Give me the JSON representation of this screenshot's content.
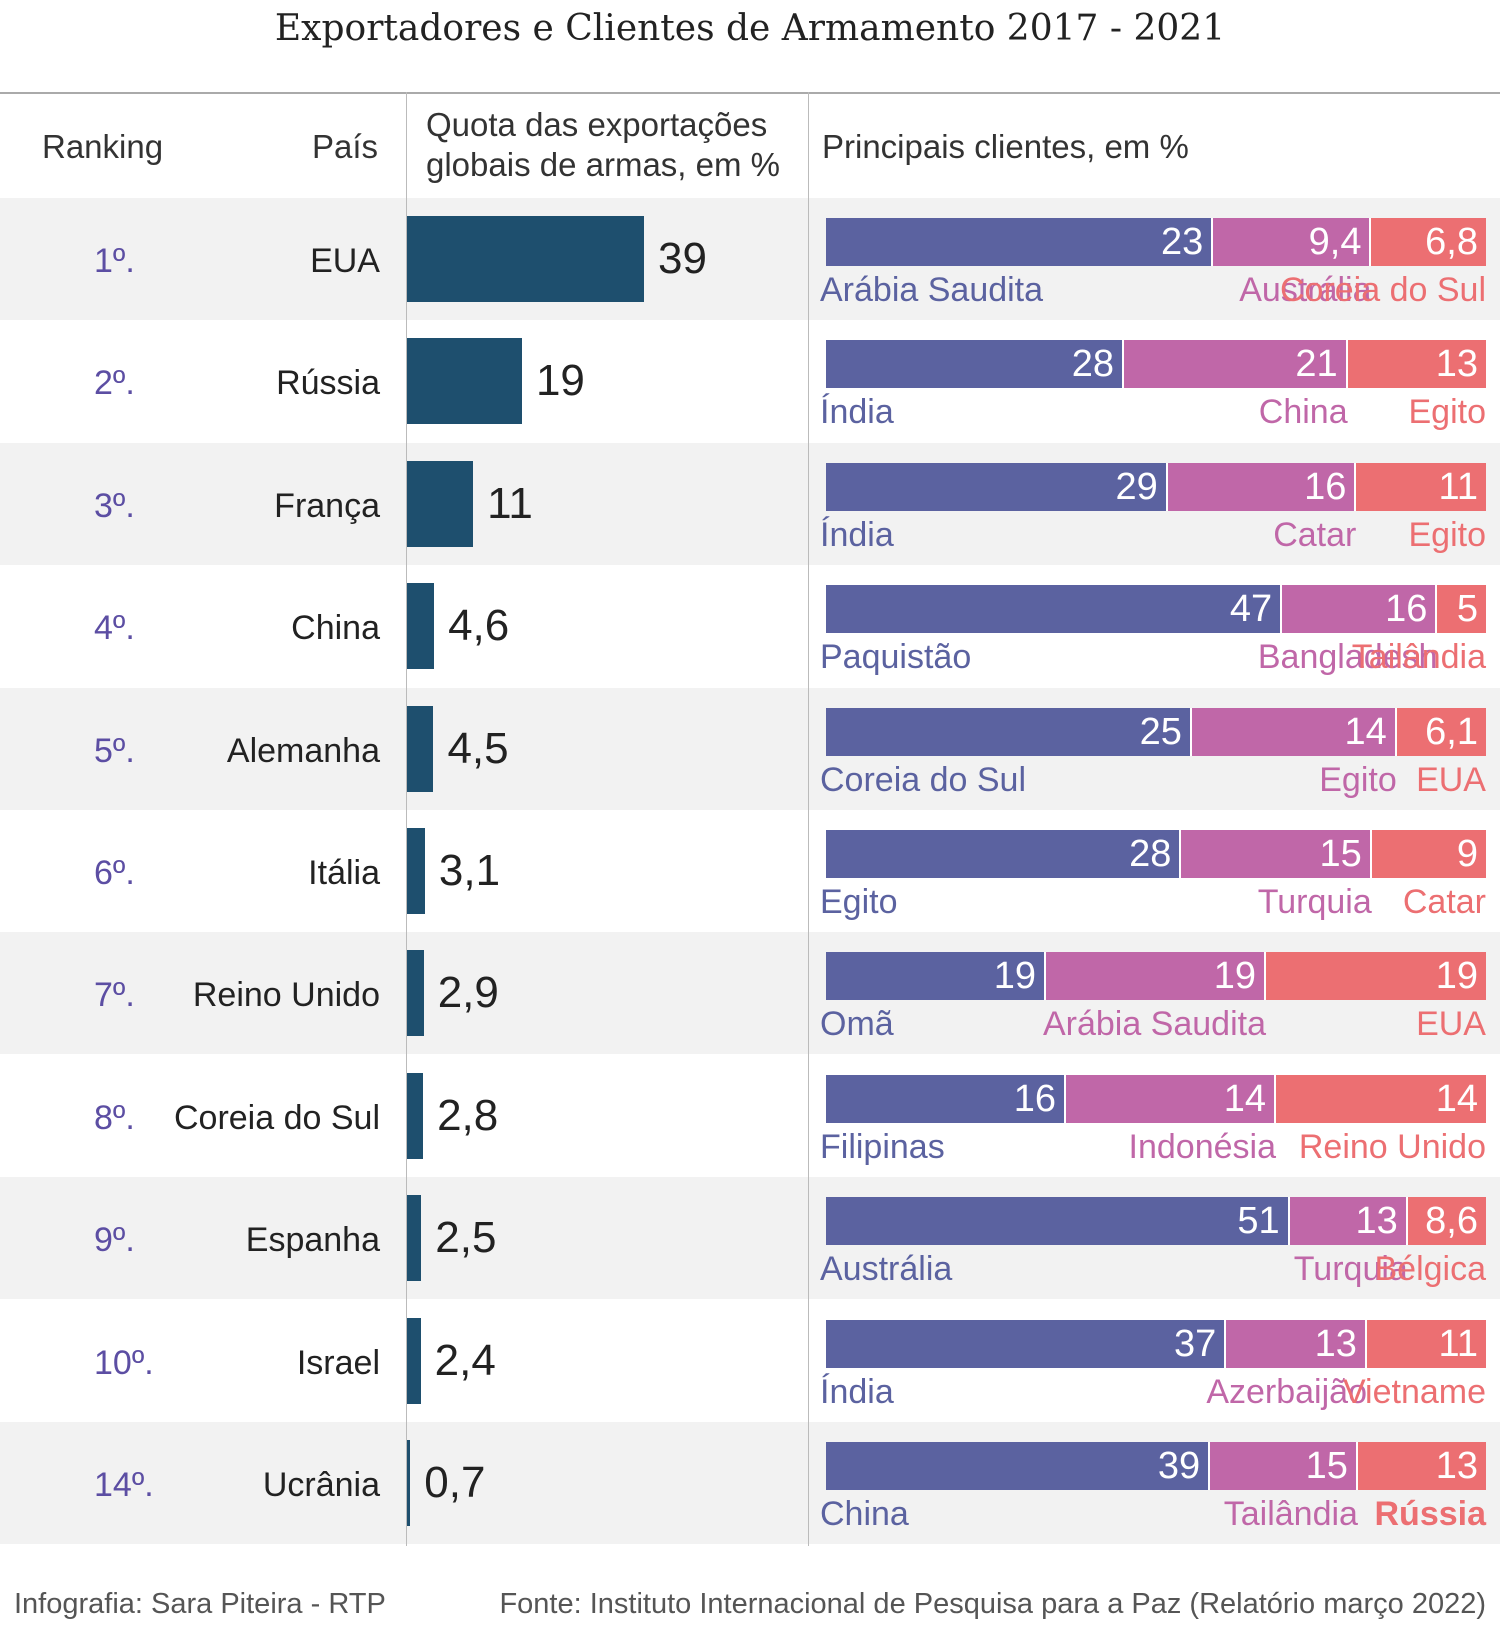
{
  "colors": {
    "share_bar": "#1e4f6e",
    "client1": "#5b62a0",
    "client2": "#c067a8",
    "client3": "#ec6f72",
    "rank": "#5c4ea3",
    "row_alt": "#f2f2f2"
  },
  "chart_data": {
    "type": "bar",
    "title": "Exportadores e Clientes de Armamento  2017 - 2021",
    "columns": {
      "ranking": "Ranking",
      "country": "País",
      "share_line1": "Quota das exportações",
      "share_line2": "globais de armas, em %",
      "clients": "Principais clientes, em %"
    },
    "share_xlim": [
      0,
      39
    ],
    "rows": [
      {
        "rank": "1º.",
        "country": "EUA",
        "share": 39,
        "share_label": "39",
        "clients": [
          {
            "name": "Arábia Saudita",
            "value": 23,
            "label": "23"
          },
          {
            "name": "Austrália",
            "value": 9.4,
            "label": "9,4"
          },
          {
            "name": "Coreia do Sul",
            "value": 6.8,
            "label": "6,8"
          }
        ]
      },
      {
        "rank": "2º.",
        "country": "Rússia",
        "share": 19,
        "share_label": "19",
        "clients": [
          {
            "name": "Índia",
            "value": 28,
            "label": "28"
          },
          {
            "name": "China",
            "value": 21,
            "label": "21"
          },
          {
            "name": "Egito",
            "value": 13,
            "label": "13"
          }
        ]
      },
      {
        "rank": "3º.",
        "country": "França",
        "share": 11,
        "share_label": "11",
        "clients": [
          {
            "name": "Índia",
            "value": 29,
            "label": "29"
          },
          {
            "name": "Catar",
            "value": 16,
            "label": "16"
          },
          {
            "name": "Egito",
            "value": 11,
            "label": "11"
          }
        ]
      },
      {
        "rank": "4º.",
        "country": "China",
        "share": 4.6,
        "share_label": "4,6",
        "clients": [
          {
            "name": "Paquistão",
            "value": 47,
            "label": "47"
          },
          {
            "name": "Bangladesh",
            "value": 16,
            "label": "16"
          },
          {
            "name": "Tailândia",
            "value": 5,
            "label": "5"
          }
        ]
      },
      {
        "rank": "5º.",
        "country": "Alemanha",
        "share": 4.5,
        "share_label": "4,5",
        "clients": [
          {
            "name": "Coreia do Sul",
            "value": 25,
            "label": "25"
          },
          {
            "name": "Egito",
            "value": 14,
            "label": "14"
          },
          {
            "name": "EUA",
            "value": 6.1,
            "label": "6,1"
          }
        ]
      },
      {
        "rank": "6º.",
        "country": "Itália",
        "share": 3.1,
        "share_label": "3,1",
        "clients": [
          {
            "name": "Egito",
            "value": 28,
            "label": "28"
          },
          {
            "name": "Turquia",
            "value": 15,
            "label": "15"
          },
          {
            "name": "Catar",
            "value": 9,
            "label": "9"
          }
        ]
      },
      {
        "rank": "7º.",
        "country": "Reino Unido",
        "share": 2.9,
        "share_label": "2,9",
        "clients": [
          {
            "name": "Omã",
            "value": 19,
            "label": "19"
          },
          {
            "name": "Arábia Saudita",
            "value": 19,
            "label": "19"
          },
          {
            "name": "EUA",
            "value": 19,
            "label": "19"
          }
        ]
      },
      {
        "rank": "8º.",
        "country": "Coreia do Sul",
        "share": 2.8,
        "share_label": "2,8",
        "clients": [
          {
            "name": "Filipinas",
            "value": 16,
            "label": "16"
          },
          {
            "name": "Indonésia",
            "value": 14,
            "label": "14"
          },
          {
            "name": "Reino Unido",
            "value": 14,
            "label": "14"
          }
        ]
      },
      {
        "rank": "9º.",
        "country": "Espanha",
        "share": 2.5,
        "share_label": "2,5",
        "clients": [
          {
            "name": "Austrália",
            "value": 51,
            "label": "51"
          },
          {
            "name": "Turquia",
            "value": 13,
            "label": "13"
          },
          {
            "name": "Bélgica",
            "value": 8.6,
            "label": "8,6"
          }
        ]
      },
      {
        "rank": "10º.",
        "country": "Israel",
        "share": 2.4,
        "share_label": "2,4",
        "clients": [
          {
            "name": "Índia",
            "value": 37,
            "label": "37"
          },
          {
            "name": "Azerbaijão",
            "value": 13,
            "label": "13"
          },
          {
            "name": "Vietname",
            "value": 11,
            "label": "11"
          }
        ]
      },
      {
        "rank": "14º.",
        "country": "Ucrânia",
        "share": 0.7,
        "share_label": "0,7",
        "clients": [
          {
            "name": "China",
            "value": 39,
            "label": "39"
          },
          {
            "name": "Tailândia",
            "value": 15,
            "label": "15"
          },
          {
            "name": "Rússia",
            "value": 13,
            "label": "13",
            "bold": true
          }
        ]
      }
    ]
  },
  "footer": {
    "credit": "Infografia: Sara Piteira - RTP",
    "source": "Fonte: Instituto Internacional de Pesquisa para a Paz (Relatório março 2022)"
  }
}
